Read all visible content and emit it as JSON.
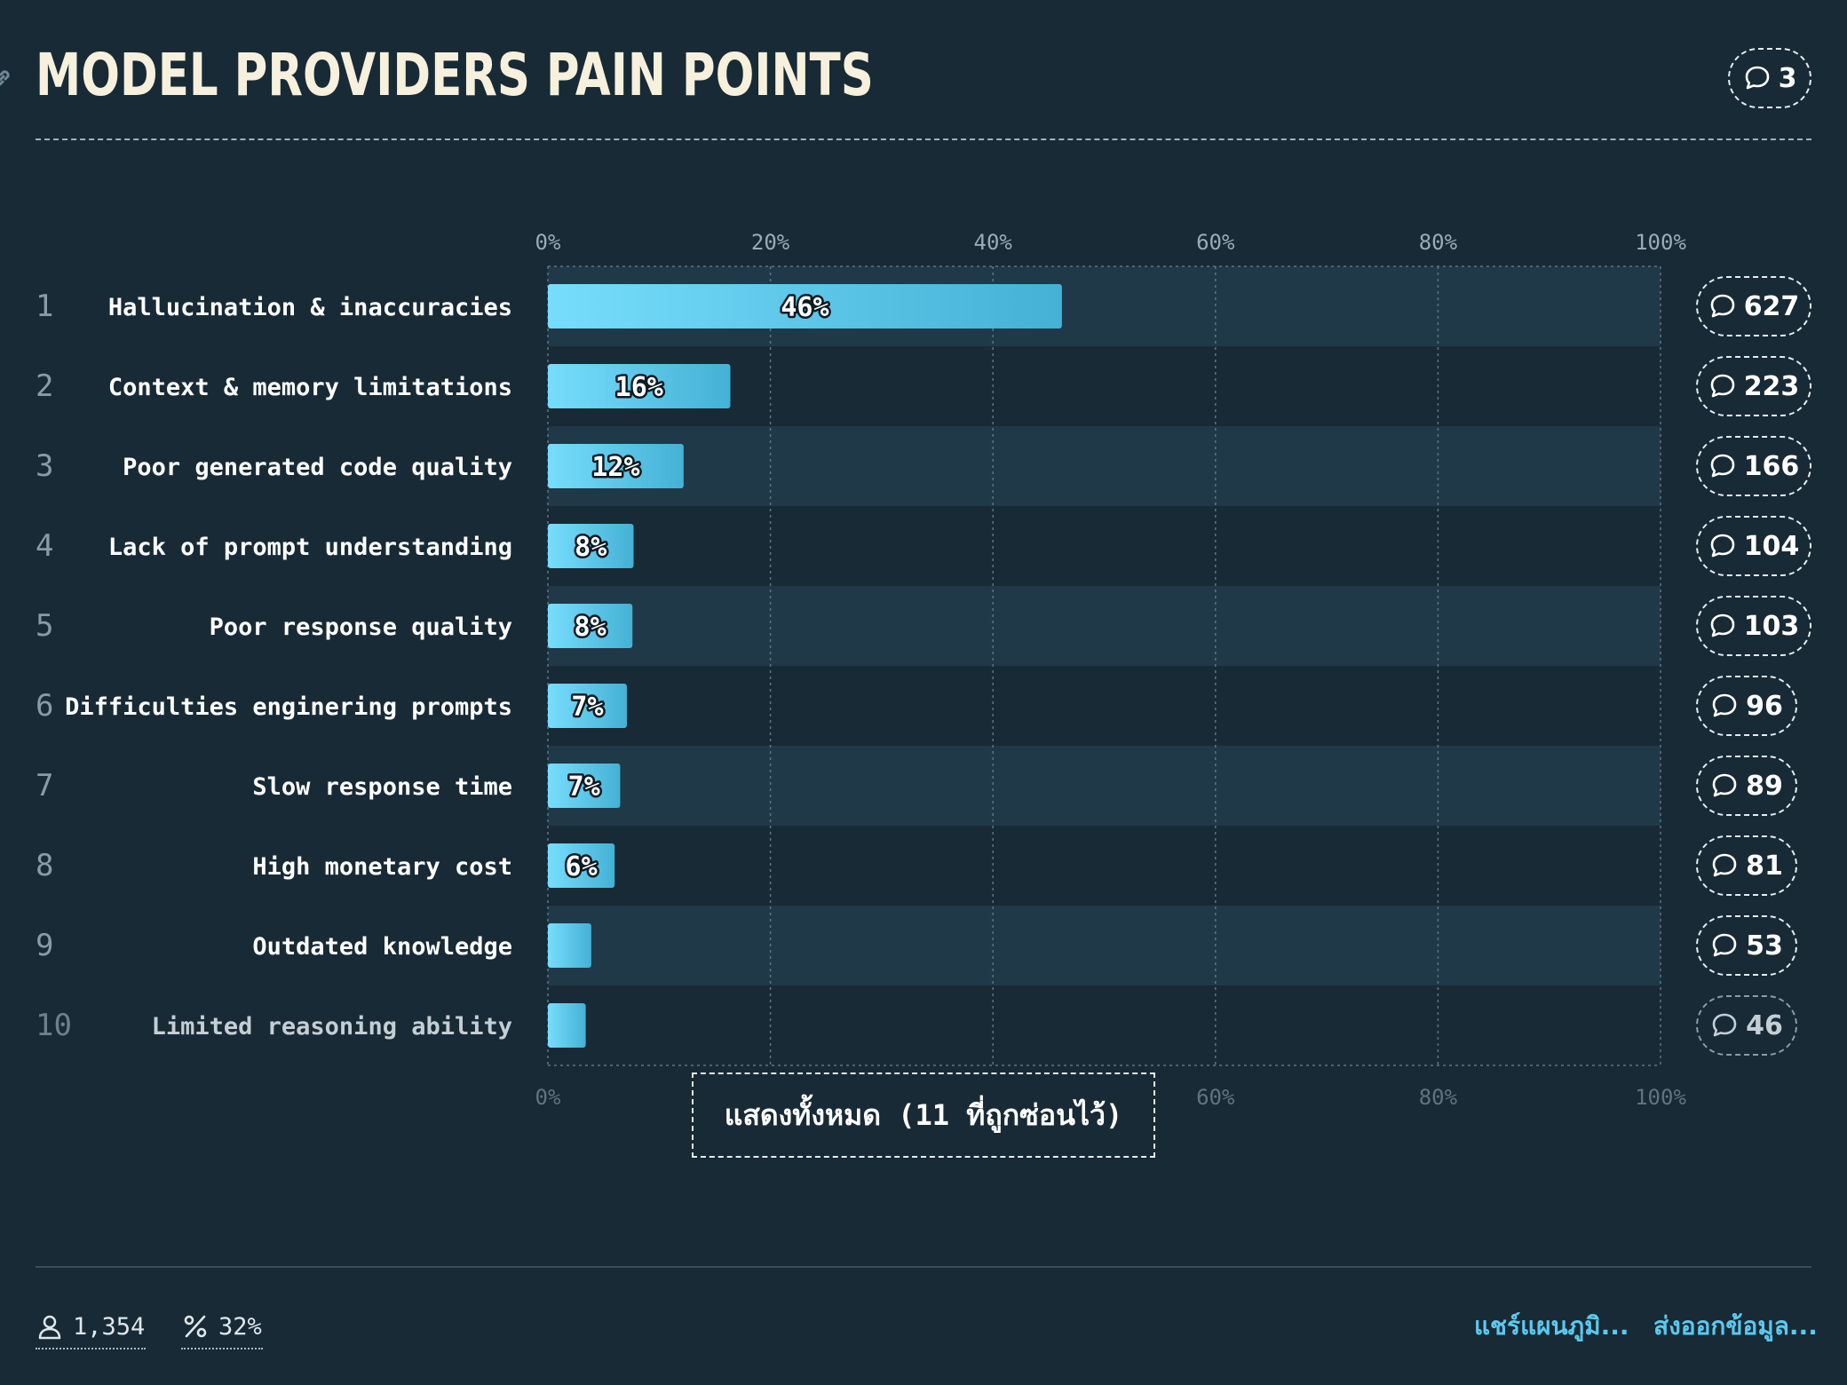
{
  "header": {
    "title": "MODEL PROVIDERS PAIN POINTS",
    "comment_count": "3"
  },
  "colors": {
    "background": "#182a35",
    "row_band": "#1f3948",
    "bar_start": "#77ddfc",
    "bar_end": "#44b1d5",
    "accent_link": "#5cc8ef"
  },
  "icons": {
    "link": "link-icon",
    "comment": "speech-bubble-icon",
    "respondents": "user-icon",
    "percent": "percent-icon"
  },
  "chart_data": {
    "type": "bar",
    "orientation": "horizontal",
    "categories": [
      "Hallucination & inaccuracies",
      "Context & memory limitations",
      "Poor generated code quality",
      "Lack of prompt understanding",
      "Poor response quality",
      "Difficulties enginering prompts",
      "Slow response time",
      "High monetary cost",
      "Outdated knowledge",
      "Limited reasoning ability"
    ],
    "ranks": [
      "1",
      "2",
      "3",
      "4",
      "5",
      "6",
      "7",
      "8",
      "9",
      "10"
    ],
    "values": [
      46.2,
      16.4,
      12.2,
      7.7,
      7.6,
      7.1,
      6.5,
      6.0,
      3.9,
      3.4
    ],
    "value_labels": [
      "46%",
      "16%",
      "12%",
      "8%",
      "8%",
      "7%",
      "7%",
      "6%",
      "",
      ""
    ],
    "comment_counts": [
      "627",
      "223",
      "166",
      "104",
      "103",
      "96",
      "89",
      "81",
      "53",
      "46"
    ],
    "xlim": [
      0,
      100
    ],
    "xticks": [
      "0%",
      "20%",
      "40%",
      "60%",
      "80%",
      "100%"
    ],
    "grid": true,
    "legend": "none"
  },
  "show_all_label": "แสดงทั้งหมด (11 ที่ถูกซ่อนไว้)",
  "footer": {
    "respondents": "1,354",
    "response_rate": "32%",
    "share_label": "แชร์แผนภูมิ...",
    "export_label": "ส่งออกข้อมูล..."
  }
}
